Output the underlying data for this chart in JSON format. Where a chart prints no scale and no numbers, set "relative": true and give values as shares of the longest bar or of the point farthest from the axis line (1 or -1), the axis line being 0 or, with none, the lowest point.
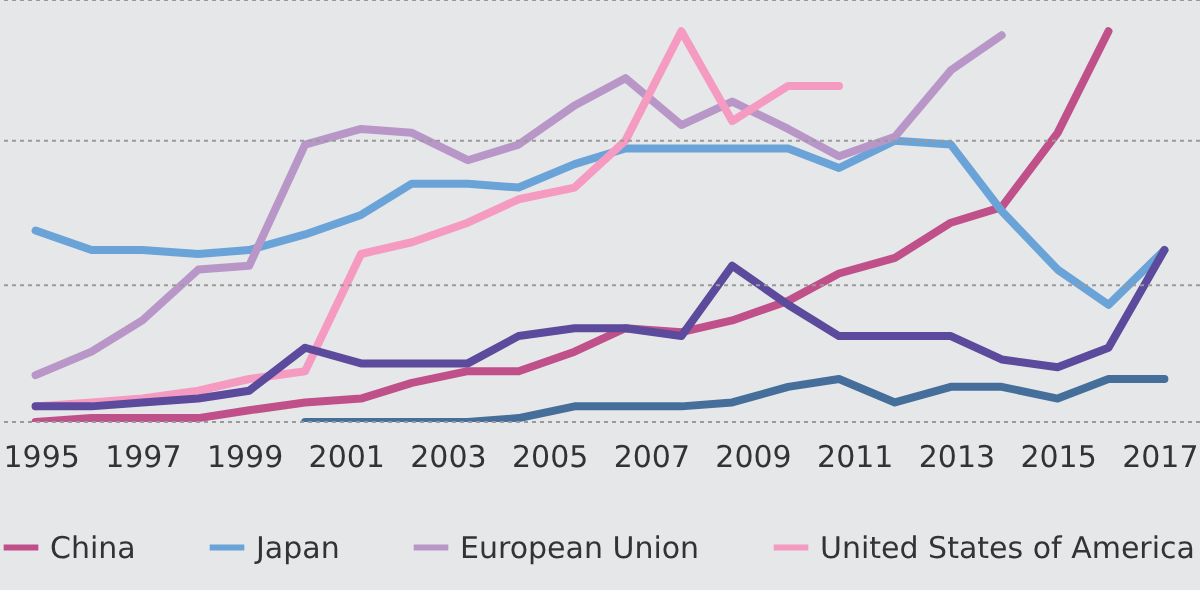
{
  "chart_data": {
    "type": "line",
    "relative": true,
    "x": [
      1994.9,
      1996.0,
      1997.0,
      1998.1,
      1999.1,
      2000.2,
      2001.3,
      2002.3,
      2003.4,
      2004.4,
      2005.5,
      2006.5,
      2007.6,
      2008.6,
      2009.7,
      2010.7,
      2011.8,
      2012.9,
      2013.9,
      2015.0,
      2016.0,
      2017.1
    ],
    "xlim": [
      1994.2,
      2017.8
    ],
    "xticks": [
      1995,
      1997,
      1999,
      2001,
      2003,
      2005,
      2007,
      2009,
      2011,
      2013,
      2015,
      2017
    ],
    "series": [
      {
        "name": "China",
        "color": "#c0508a",
        "values": [
          0.0,
          0.01,
          0.01,
          0.01,
          0.03,
          0.05,
          0.06,
          0.1,
          0.13,
          0.13,
          0.18,
          0.24,
          0.23,
          0.26,
          0.31,
          0.38,
          0.42,
          0.51,
          0.55,
          0.74,
          1.0,
          null
        ]
      },
      {
        "name": "Japan",
        "color": "#6aa3d8",
        "values": [
          0.49,
          0.44,
          0.44,
          0.43,
          0.44,
          0.48,
          0.53,
          0.61,
          0.61,
          0.6,
          0.66,
          0.7,
          0.7,
          0.7,
          0.7,
          0.65,
          0.72,
          0.71,
          0.54,
          0.39,
          0.3,
          0.44
        ]
      },
      {
        "name": "European Union",
        "color": "#b897c8",
        "values": [
          0.12,
          0.18,
          0.26,
          0.39,
          0.4,
          0.71,
          0.75,
          0.74,
          0.67,
          0.71,
          0.81,
          0.88,
          0.76,
          0.82,
          0.75,
          0.68,
          0.73,
          0.9,
          0.99,
          null,
          null,
          null
        ]
      },
      {
        "name": "United States of America",
        "color": "#f59ac0",
        "values": [
          0.04,
          0.05,
          0.06,
          0.08,
          0.11,
          0.13,
          0.43,
          0.46,
          0.51,
          0.57,
          0.6,
          0.72,
          1.0,
          0.77,
          0.86,
          0.86,
          null,
          null,
          null,
          null,
          null,
          null
        ]
      },
      {
        "color": "#5c4a9c",
        "values": [
          0.04,
          0.04,
          0.05,
          0.06,
          0.08,
          0.19,
          0.15,
          0.15,
          0.15,
          0.22,
          0.24,
          0.24,
          0.22,
          0.4,
          0.3,
          0.22,
          0.22,
          0.22,
          0.16,
          0.14,
          0.19,
          0.44
        ]
      },
      {
        "color": "#456f9a",
        "values": [
          null,
          null,
          null,
          null,
          null,
          0.0,
          0.0,
          0.0,
          0.0,
          0.01,
          0.04,
          0.04,
          0.04,
          0.05,
          0.09,
          0.11,
          0.05,
          0.09,
          0.09,
          0.06,
          0.11,
          0.11
        ]
      }
    ],
    "ref_lines": [
      {
        "axis": "y",
        "value": 0,
        "color": "#9a9a9a",
        "line_style": "dotted"
      },
      {
        "axis": "y",
        "value": 0.35,
        "color": "#9a9a9a",
        "line_style": "dotted"
      },
      {
        "axis": "y",
        "value": 0.72,
        "color": "#9a9a9a",
        "line_style": "dotted"
      },
      {
        "axis": "y",
        "value": 1.08,
        "color": "#9a9a9a",
        "line_style": "dotted"
      }
    ],
    "legend": "bottom"
  }
}
